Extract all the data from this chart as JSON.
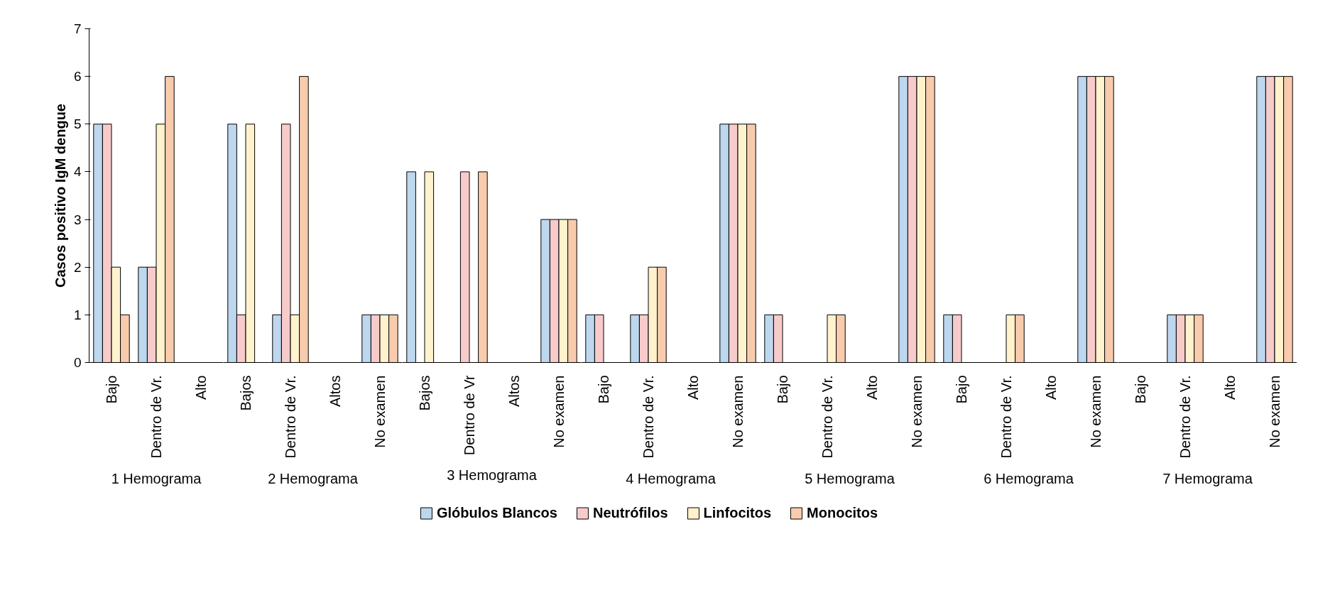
{
  "chart_data": [
    {
      "type": "bar",
      "ylabel": "Casos positivo IgM dengue",
      "xlabel": "1 Hemograma",
      "categories": [
        "Bajo",
        "Dentro de Vr.",
        "Alto"
      ],
      "series": [
        {
          "color": "#bdd7ee",
          "values": [
            5,
            2,
            0
          ]
        },
        {
          "color": "#f8cbcb",
          "values": [
            5,
            2,
            0
          ]
        },
        {
          "color": "#fff2cc",
          "values": [
            2,
            5,
            0
          ]
        },
        {
          "color": "#f8cbad",
          "values": [
            1,
            6,
            0
          ]
        }
      ],
      "ylim": [
        0,
        7
      ],
      "yticks": [
        0,
        1,
        2,
        3,
        4,
        5,
        6,
        7
      ],
      "grid": false
    },
    {
      "type": "bar",
      "xlabel": "2 Hemograma",
      "categories": [
        "Bajos",
        "Dentro de Vr.",
        "Altos",
        "No examen"
      ],
      "series": [
        {
          "color": "#bdd7ee",
          "values": [
            5,
            1,
            0,
            1
          ]
        },
        {
          "color": "#f8cbcb",
          "values": [
            1,
            5,
            0,
            1
          ]
        },
        {
          "color": "#fff2cc",
          "values": [
            5,
            1,
            0,
            1
          ]
        },
        {
          "color": "#f8cbad",
          "values": [
            0,
            6,
            0,
            1
          ]
        }
      ],
      "ylim": [
        0,
        7
      ],
      "yticks": [
        0,
        1,
        2,
        3,
        4,
        5,
        6,
        7
      ],
      "tick_labels": "x"
    },
    {
      "type": "bar",
      "xlabel": "3 Hemograma",
      "categories": [
        "Bajos",
        "Dentro de Vr",
        "Altos",
        "No examen"
      ],
      "series": [
        {
          "color": "#bdd7ee",
          "values": [
            4,
            0,
            0,
            3
          ]
        },
        {
          "color": "#f8cbcb",
          "values": [
            0,
            4,
            0,
            3
          ]
        },
        {
          "color": "#fff2cc",
          "values": [
            4,
            0,
            0,
            3
          ]
        },
        {
          "color": "#f8cbad",
          "values": [
            0,
            4,
            0,
            3
          ]
        }
      ],
      "ylim": [
        0,
        7
      ],
      "yticks": [
        0,
        1,
        2,
        3,
        4,
        5,
        6,
        7
      ],
      "tick_labels": "x"
    },
    {
      "type": "bar",
      "xlabel": "4 Hemograma",
      "categories": [
        "Bajo",
        "Dentro de Vr.",
        "Alto",
        "No examen"
      ],
      "series": [
        {
          "name": "Glóbulos Blancos",
          "color": "#bdd7ee",
          "values": [
            1,
            1,
            0,
            5
          ]
        },
        {
          "name": "Neutrófilos",
          "color": "#f8cbcb",
          "values": [
            1,
            1,
            0,
            5
          ]
        },
        {
          "name": "Linfocitos",
          "color": "#fff2cc",
          "values": [
            0,
            2,
            0,
            5
          ]
        },
        {
          "name": "Monocitos",
          "color": "#f8cbad",
          "values": [
            0,
            2,
            0,
            5
          ]
        }
      ],
      "ylim": [
        0,
        7
      ],
      "yticks": [
        0,
        1,
        2,
        3,
        4,
        5,
        6,
        7
      ],
      "tick_labels": "x",
      "legend": "bottom"
    },
    {
      "type": "bar",
      "xlabel": "5 Hemograma",
      "categories": [
        "Bajo",
        "Dentro de Vr.",
        "Alto",
        "No examen"
      ],
      "series": [
        {
          "color": "#bdd7ee",
          "values": [
            1,
            0,
            0,
            6
          ]
        },
        {
          "color": "#f8cbcb",
          "values": [
            1,
            0,
            0,
            6
          ]
        },
        {
          "color": "#fff2cc",
          "values": [
            0,
            1,
            0,
            6
          ]
        },
        {
          "color": "#f8cbad",
          "values": [
            0,
            1,
            0,
            6
          ]
        }
      ],
      "ylim": [
        0,
        7
      ],
      "yticks": [
        0,
        1,
        2,
        3,
        4,
        5,
        6,
        7
      ],
      "tick_labels": "x"
    },
    {
      "type": "bar",
      "xlabel": "6 Hemograma",
      "categories": [
        "Bajo",
        "Dentro de Vr.",
        "Alto",
        "No examen"
      ],
      "series": [
        {
          "color": "#bdd7ee",
          "values": [
            1,
            0,
            0,
            6
          ]
        },
        {
          "color": "#f8cbcb",
          "values": [
            1,
            0,
            0,
            6
          ]
        },
        {
          "color": "#fff2cc",
          "values": [
            0,
            1,
            0,
            6
          ]
        },
        {
          "color": "#f8cbad",
          "values": [
            0,
            1,
            0,
            6
          ]
        }
      ],
      "ylim": [
        0,
        7
      ],
      "yticks": [
        0,
        1,
        2,
        3,
        4,
        5,
        6,
        7
      ],
      "tick_labels": "x"
    },
    {
      "type": "bar",
      "xlabel": "7 Hemograma",
      "categories": [
        "Bajo",
        "Dentro de Vr.",
        "Alto",
        "No examen"
      ],
      "series": [
        {
          "color": "#bdd7ee",
          "values": [
            0,
            1,
            0,
            6
          ]
        },
        {
          "color": "#f8cbcb",
          "values": [
            0,
            1,
            0,
            6
          ]
        },
        {
          "color": "#fff2cc",
          "values": [
            0,
            1,
            0,
            6
          ]
        },
        {
          "color": "#f8cbad",
          "values": [
            0,
            1,
            0,
            6
          ]
        }
      ],
      "ylim": [
        0,
        7
      ],
      "yticks": [
        0,
        1,
        2,
        3,
        4,
        5,
        6,
        7
      ],
      "tick_labels": "x"
    }
  ]
}
